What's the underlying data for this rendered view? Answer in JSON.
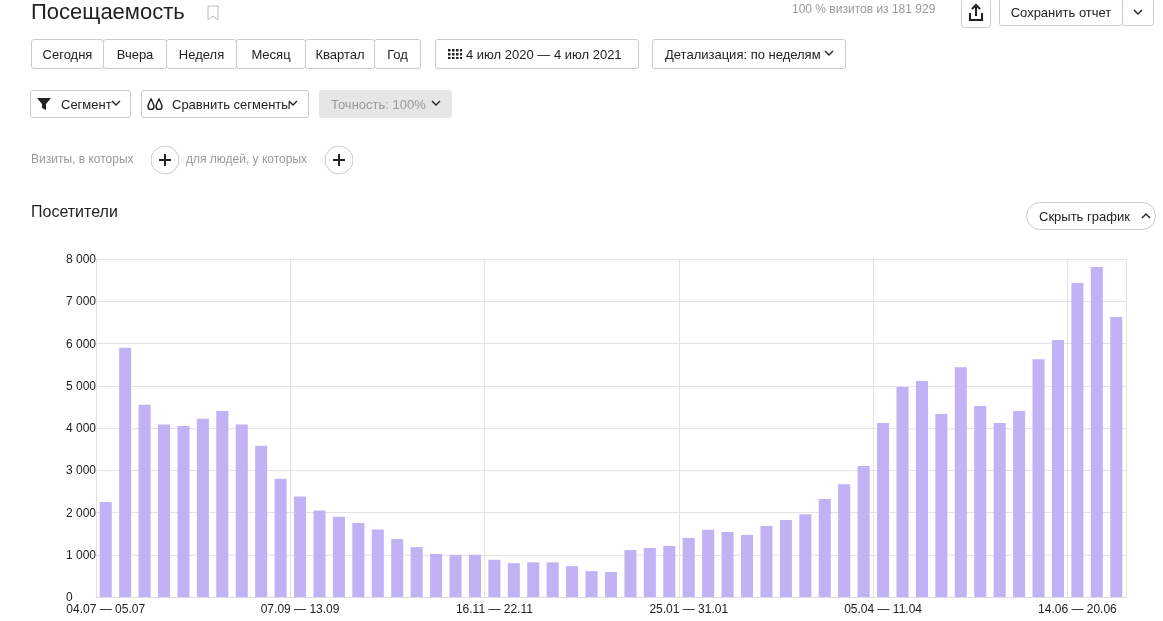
{
  "chart_data": {
    "type": "bar",
    "title": "Посещаемость",
    "subtitle": "Посетители",
    "annotations": [
      "100 % визитов из 181 929",
      "Сохранить отчет",
      "Сегодня",
      "Вчера",
      "Неделя",
      "Месяц",
      "Квартал",
      "Год",
      "4 июл 2020 — 4 июл 2021",
      "Детализация: по неделям",
      "Сегмент",
      "Сравнить сегменты",
      "Точность: 100%",
      "Визиты, в которых",
      "для людей, у которых",
      "Скрыть график"
    ],
    "categories": [
      "04.07 — 05.07",
      null,
      null,
      null,
      null,
      null,
      null,
      null,
      null,
      null,
      "07.09 — 13.09",
      null,
      null,
      null,
      null,
      null,
      null,
      null,
      null,
      null,
      "16.11 — 22.11",
      null,
      null,
      null,
      null,
      null,
      null,
      null,
      null,
      null,
      "25.01 — 31.01",
      null,
      null,
      null,
      null,
      null,
      null,
      null,
      null,
      null,
      "05.04 — 11.04",
      null,
      null,
      null,
      null,
      null,
      null,
      null,
      null,
      null,
      "14.06 — 20.06",
      null,
      null
    ],
    "values": [
      2250,
      5900,
      4550,
      4080,
      4050,
      4220,
      4400,
      4080,
      3580,
      2800,
      2380,
      2050,
      1900,
      1750,
      1600,
      1370,
      1180,
      1020,
      1000,
      1000,
      880,
      800,
      820,
      820,
      730,
      610,
      590,
      1110,
      1160,
      1210,
      1400,
      1590,
      1540,
      1470,
      1680,
      1820,
      1960,
      2320,
      2670,
      3100,
      4120,
      4970,
      5110,
      4330,
      5440,
      4520,
      4120,
      4400,
      5630,
      6080,
      7430,
      7810,
      6630
    ],
    "color": "#c0b2f5",
    "ylim": [
      0,
      8000
    ],
    "yticks": [
      {
        "value": 0,
        "label": "0"
      },
      {
        "value": 1000,
        "label": "1 000"
      },
      {
        "value": 2000,
        "label": "2 000"
      },
      {
        "value": 3000,
        "label": "3 000"
      },
      {
        "value": 4000,
        "label": "4 000"
      },
      {
        "value": 5000,
        "label": "5 000"
      },
      {
        "value": 6000,
        "label": "6 000"
      },
      {
        "value": 7000,
        "label": "7 000"
      },
      {
        "value": 8000,
        "label": "8 000"
      }
    ],
    "grid": true
  }
}
